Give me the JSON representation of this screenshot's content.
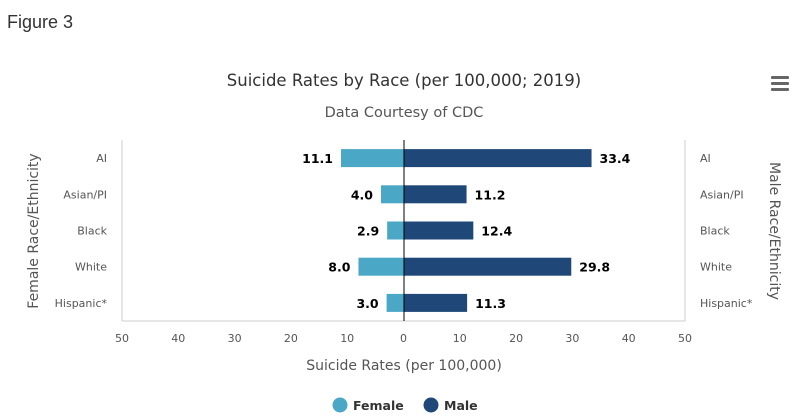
{
  "figure_label": "Figure 3",
  "colors": {
    "female": "#4ba7c6",
    "male": "#1f4878"
  },
  "chart_data": {
    "type": "bar",
    "orientation": "horizontal-population-pyramid",
    "title": "Suicide Rates by Race (per 100,000; 2019)",
    "subtitle": "Data Courtesy of CDC",
    "xlabel": "Suicide Rates (per 100,000)",
    "ylabel_left": "Female Race/Ethnicity",
    "ylabel_right": "Male Race/Ethnicity",
    "categories": [
      "AI",
      "Asian/PI",
      "Black",
      "White",
      "Hispanic*"
    ],
    "series": [
      {
        "name": "Female",
        "values": [
          11.1,
          4.0,
          2.9,
          8.0,
          3.0
        ],
        "value_labels": [
          "11.1",
          "4.0",
          "2.9",
          "8.0",
          "3.0"
        ]
      },
      {
        "name": "Male",
        "values": [
          33.4,
          11.2,
          12.4,
          29.8,
          11.3
        ],
        "value_labels": [
          "33.4",
          "11.2",
          "12.4",
          "29.8",
          "11.3"
        ]
      }
    ],
    "xlim": [
      -50,
      50
    ],
    "x_ticks": [
      -50,
      -40,
      -30,
      -20,
      -10,
      0,
      10,
      20,
      30,
      40,
      50
    ],
    "x_tick_labels": [
      "50",
      "40",
      "30",
      "20",
      "10",
      "0",
      "10",
      "20",
      "30",
      "40",
      "50"
    ],
    "grid": false,
    "legend_position": "bottom-center"
  }
}
